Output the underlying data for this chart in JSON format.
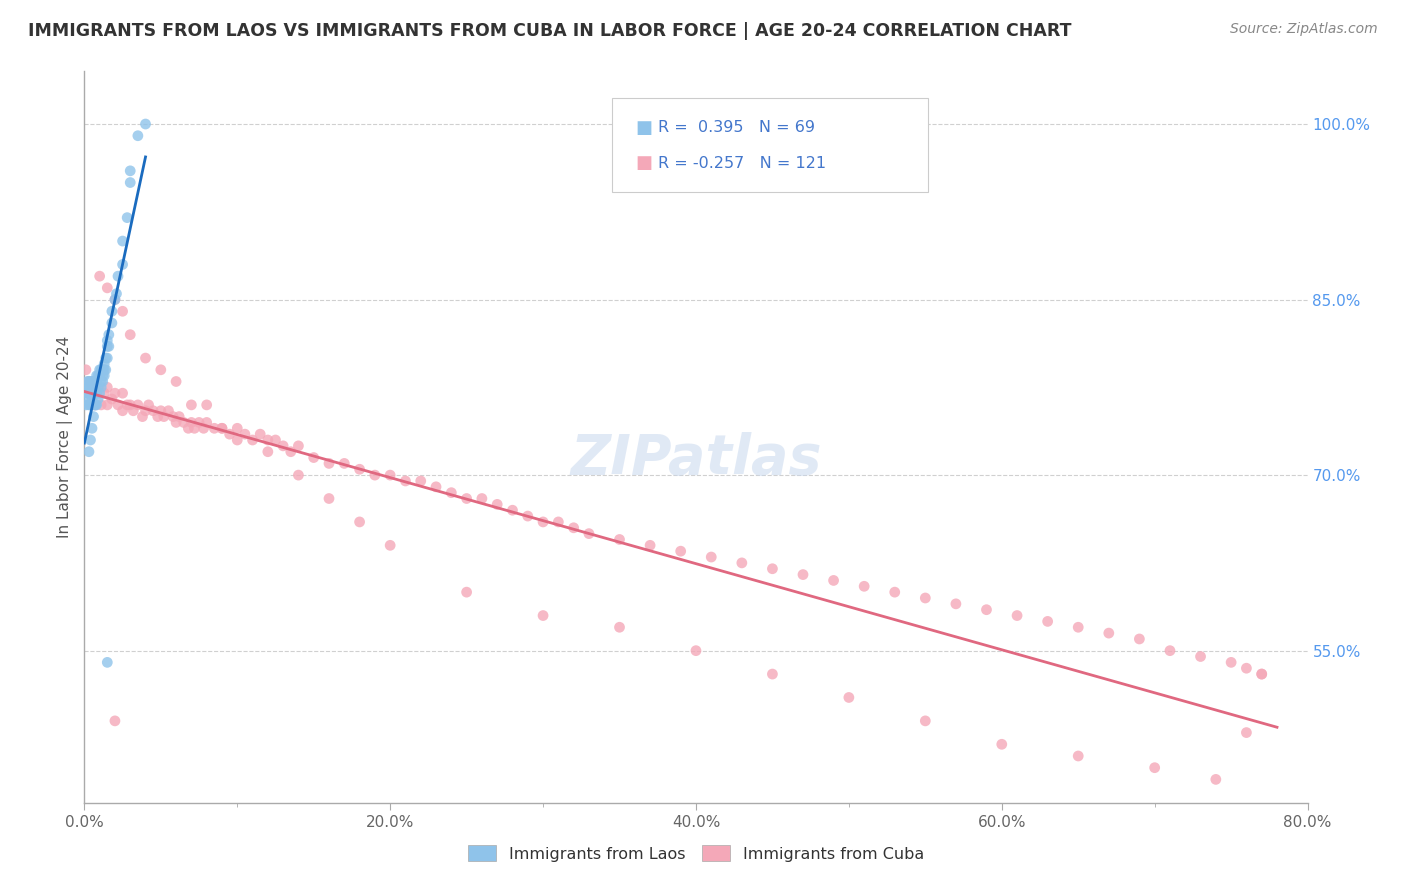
{
  "title": "IMMIGRANTS FROM LAOS VS IMMIGRANTS FROM CUBA IN LABOR FORCE | AGE 20-24 CORRELATION CHART",
  "source": "Source: ZipAtlas.com",
  "ylabel": "In Labor Force | Age 20-24",
  "legend_laos": "Immigrants from Laos",
  "legend_cuba": "Immigrants from Cuba",
  "R_laos": 0.395,
  "N_laos": 69,
  "R_cuba": -0.257,
  "N_cuba": 121,
  "color_laos": "#8fc3ea",
  "color_cuba": "#f4a8b8",
  "line_color_laos": "#1a6bbf",
  "line_color_cuba": "#e06880",
  "background_color": "#ffffff",
  "x_min": 0.0,
  "x_max": 0.8,
  "y_min": 0.42,
  "y_max": 1.045,
  "laos_x": [
    0.001,
    0.001,
    0.002,
    0.002,
    0.002,
    0.003,
    0.003,
    0.003,
    0.003,
    0.004,
    0.004,
    0.004,
    0.004,
    0.005,
    0.005,
    0.005,
    0.005,
    0.005,
    0.006,
    0.006,
    0.006,
    0.006,
    0.007,
    0.007,
    0.007,
    0.008,
    0.008,
    0.008,
    0.009,
    0.009,
    0.01,
    0.01,
    0.011,
    0.011,
    0.012,
    0.012,
    0.013,
    0.013,
    0.014,
    0.015,
    0.015,
    0.016,
    0.018,
    0.02,
    0.022,
    0.025,
    0.028,
    0.03,
    0.035,
    0.04,
    0.003,
    0.004,
    0.005,
    0.006,
    0.007,
    0.008,
    0.009,
    0.01,
    0.011,
    0.012,
    0.013,
    0.014,
    0.015,
    0.016,
    0.018,
    0.021,
    0.025,
    0.03,
    0.015
  ],
  "laos_y": [
    0.76,
    0.775,
    0.77,
    0.78,
    0.765,
    0.77,
    0.76,
    0.775,
    0.78,
    0.77,
    0.775,
    0.76,
    0.78,
    0.76,
    0.775,
    0.78,
    0.77,
    0.765,
    0.775,
    0.76,
    0.78,
    0.77,
    0.78,
    0.775,
    0.76,
    0.785,
    0.77,
    0.78,
    0.785,
    0.775,
    0.79,
    0.785,
    0.79,
    0.78,
    0.79,
    0.785,
    0.795,
    0.79,
    0.8,
    0.81,
    0.815,
    0.82,
    0.84,
    0.85,
    0.87,
    0.9,
    0.92,
    0.95,
    0.99,
    1.0,
    0.72,
    0.73,
    0.74,
    0.75,
    0.76,
    0.76,
    0.765,
    0.77,
    0.775,
    0.78,
    0.785,
    0.79,
    0.8,
    0.81,
    0.83,
    0.855,
    0.88,
    0.96,
    0.54
  ],
  "cuba_x": [
    0.001,
    0.003,
    0.005,
    0.007,
    0.009,
    0.011,
    0.013,
    0.015,
    0.015,
    0.018,
    0.02,
    0.022,
    0.025,
    0.025,
    0.028,
    0.03,
    0.032,
    0.035,
    0.038,
    0.04,
    0.042,
    0.045,
    0.048,
    0.05,
    0.052,
    0.055,
    0.058,
    0.06,
    0.062,
    0.065,
    0.068,
    0.07,
    0.072,
    0.075,
    0.078,
    0.08,
    0.085,
    0.09,
    0.095,
    0.1,
    0.105,
    0.11,
    0.115,
    0.12,
    0.125,
    0.13,
    0.135,
    0.14,
    0.15,
    0.16,
    0.17,
    0.18,
    0.19,
    0.2,
    0.21,
    0.22,
    0.23,
    0.24,
    0.25,
    0.26,
    0.27,
    0.28,
    0.29,
    0.3,
    0.31,
    0.32,
    0.33,
    0.35,
    0.37,
    0.39,
    0.41,
    0.43,
    0.45,
    0.47,
    0.49,
    0.51,
    0.53,
    0.55,
    0.57,
    0.59,
    0.61,
    0.63,
    0.65,
    0.67,
    0.69,
    0.71,
    0.73,
    0.75,
    0.76,
    0.77,
    0.01,
    0.015,
    0.02,
    0.025,
    0.03,
    0.04,
    0.05,
    0.06,
    0.07,
    0.08,
    0.09,
    0.1,
    0.12,
    0.14,
    0.16,
    0.18,
    0.2,
    0.25,
    0.3,
    0.35,
    0.4,
    0.45,
    0.5,
    0.55,
    0.6,
    0.65,
    0.7,
    0.74,
    0.76,
    0.77,
    0.02
  ],
  "cuba_y": [
    0.79,
    0.78,
    0.775,
    0.76,
    0.775,
    0.76,
    0.77,
    0.775,
    0.76,
    0.765,
    0.77,
    0.76,
    0.77,
    0.755,
    0.76,
    0.76,
    0.755,
    0.76,
    0.75,
    0.755,
    0.76,
    0.755,
    0.75,
    0.755,
    0.75,
    0.755,
    0.75,
    0.745,
    0.75,
    0.745,
    0.74,
    0.745,
    0.74,
    0.745,
    0.74,
    0.745,
    0.74,
    0.74,
    0.735,
    0.74,
    0.735,
    0.73,
    0.735,
    0.73,
    0.73,
    0.725,
    0.72,
    0.725,
    0.715,
    0.71,
    0.71,
    0.705,
    0.7,
    0.7,
    0.695,
    0.695,
    0.69,
    0.685,
    0.68,
    0.68,
    0.675,
    0.67,
    0.665,
    0.66,
    0.66,
    0.655,
    0.65,
    0.645,
    0.64,
    0.635,
    0.63,
    0.625,
    0.62,
    0.615,
    0.61,
    0.605,
    0.6,
    0.595,
    0.59,
    0.585,
    0.58,
    0.575,
    0.57,
    0.565,
    0.56,
    0.55,
    0.545,
    0.54,
    0.535,
    0.53,
    0.87,
    0.86,
    0.85,
    0.84,
    0.82,
    0.8,
    0.79,
    0.78,
    0.76,
    0.76,
    0.74,
    0.73,
    0.72,
    0.7,
    0.68,
    0.66,
    0.64,
    0.6,
    0.58,
    0.57,
    0.55,
    0.53,
    0.51,
    0.49,
    0.47,
    0.46,
    0.45,
    0.44,
    0.48,
    0.53,
    0.49
  ]
}
